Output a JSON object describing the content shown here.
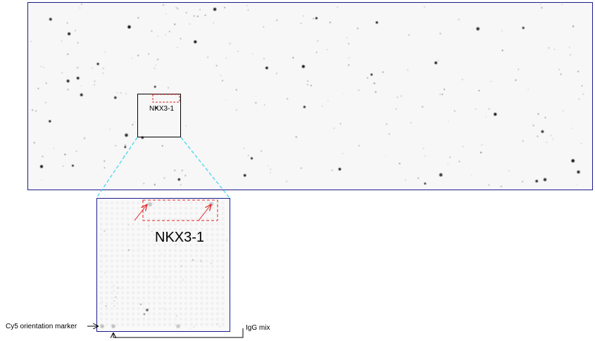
{
  "overview": {
    "roi_label": "NKX3-1"
  },
  "zoom": {
    "roi_label": "NKX3-1"
  },
  "annotations": {
    "orientation_marker": "Cy5 orientation marker",
    "igg_mix": "IgG mix"
  },
  "colors": {
    "frame": "#1a1a8c",
    "roi_box": "#e02020",
    "connector": "#33d6f0",
    "slide_bg": "#f7f7f7",
    "spot": "#222222"
  }
}
